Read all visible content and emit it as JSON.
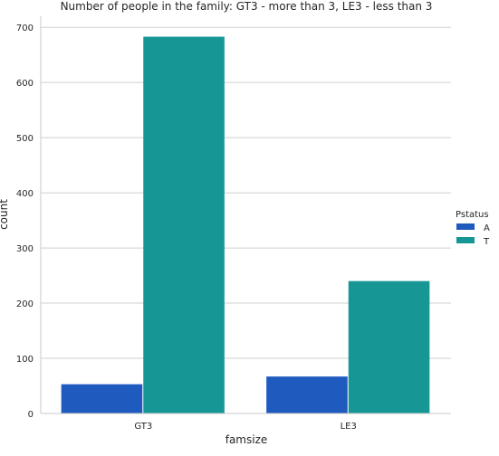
{
  "chart_data": {
    "type": "bar",
    "title": "Number of people in the family: GT3 - more than 3, LE3 - less than 3",
    "xlabel": "famsize",
    "ylabel": "count",
    "categories": [
      "GT3",
      "LE3"
    ],
    "series": [
      {
        "name": "A",
        "color": "#1f5bbf",
        "values": [
          53,
          67
        ]
      },
      {
        "name": "T",
        "color": "#179696",
        "values": [
          683,
          240
        ]
      }
    ],
    "ylim": [
      0,
      720
    ],
    "yticks": [
      "0",
      "100",
      "200",
      "300",
      "400",
      "500",
      "600",
      "700"
    ],
    "grid": "horizontal",
    "legend_title": "Pstatus",
    "legend_position": "right"
  }
}
